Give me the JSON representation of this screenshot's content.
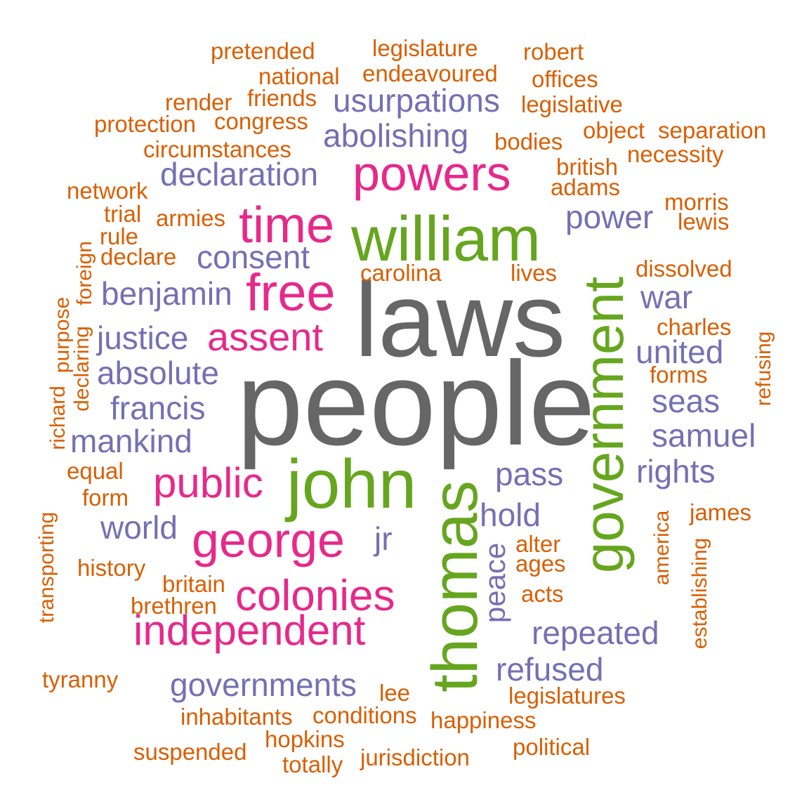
{
  "palette": {
    "gray": "#666666",
    "green": "#66A61E",
    "pink": "#E7298A",
    "purple": "#7570B3",
    "orange": "#D95F02"
  },
  "words": [
    {
      "text": "laws",
      "color": "gray"
    },
    {
      "text": "people",
      "color": "gray"
    },
    {
      "text": "william",
      "color": "green"
    },
    {
      "text": "john",
      "color": "green"
    },
    {
      "text": "thomas",
      "color": "green"
    },
    {
      "text": "government",
      "color": "green"
    },
    {
      "text": "powers",
      "color": "pink"
    },
    {
      "text": "time",
      "color": "pink"
    },
    {
      "text": "free",
      "color": "pink"
    },
    {
      "text": "assent",
      "color": "pink"
    },
    {
      "text": "public",
      "color": "pink"
    },
    {
      "text": "george",
      "color": "pink"
    },
    {
      "text": "colonies",
      "color": "pink"
    },
    {
      "text": "independent",
      "color": "pink"
    },
    {
      "text": "usurpations",
      "color": "purple"
    },
    {
      "text": "abolishing",
      "color": "purple"
    },
    {
      "text": "declaration",
      "color": "purple"
    },
    {
      "text": "consent",
      "color": "purple"
    },
    {
      "text": "benjamin",
      "color": "purple"
    },
    {
      "text": "justice",
      "color": "purple"
    },
    {
      "text": "absolute",
      "color": "purple"
    },
    {
      "text": "francis",
      "color": "purple"
    },
    {
      "text": "mankind",
      "color": "purple"
    },
    {
      "text": "world",
      "color": "purple"
    },
    {
      "text": "jr",
      "color": "purple"
    },
    {
      "text": "governments",
      "color": "purple"
    },
    {
      "text": "power",
      "color": "purple"
    },
    {
      "text": "war",
      "color": "purple"
    },
    {
      "text": "united",
      "color": "purple"
    },
    {
      "text": "seas",
      "color": "purple"
    },
    {
      "text": "samuel",
      "color": "purple"
    },
    {
      "text": "rights",
      "color": "purple"
    },
    {
      "text": "pass",
      "color": "purple"
    },
    {
      "text": "hold",
      "color": "purple"
    },
    {
      "text": "peace",
      "color": "purple"
    },
    {
      "text": "repeated",
      "color": "purple"
    },
    {
      "text": "refused",
      "color": "purple"
    },
    {
      "text": "pretended",
      "color": "orange"
    },
    {
      "text": "legislature",
      "color": "orange"
    },
    {
      "text": "robert",
      "color": "orange"
    },
    {
      "text": "national",
      "color": "orange"
    },
    {
      "text": "endeavoured",
      "color": "orange"
    },
    {
      "text": "offices",
      "color": "orange"
    },
    {
      "text": "render",
      "color": "orange"
    },
    {
      "text": "friends",
      "color": "orange"
    },
    {
      "text": "legislative",
      "color": "orange"
    },
    {
      "text": "protection",
      "color": "orange"
    },
    {
      "text": "congress",
      "color": "orange"
    },
    {
      "text": "object",
      "color": "orange"
    },
    {
      "text": "separation",
      "color": "orange"
    },
    {
      "text": "circumstances",
      "color": "orange"
    },
    {
      "text": "bodies",
      "color": "orange"
    },
    {
      "text": "necessity",
      "color": "orange"
    },
    {
      "text": "british",
      "color": "orange"
    },
    {
      "text": "network",
      "color": "orange"
    },
    {
      "text": "adams",
      "color": "orange"
    },
    {
      "text": "trial",
      "color": "orange"
    },
    {
      "text": "armies",
      "color": "orange"
    },
    {
      "text": "morris",
      "color": "orange"
    },
    {
      "text": "lewis",
      "color": "orange"
    },
    {
      "text": "rule",
      "color": "orange"
    },
    {
      "text": "declare",
      "color": "orange"
    },
    {
      "text": "carolina",
      "color": "orange"
    },
    {
      "text": "lives",
      "color": "orange"
    },
    {
      "text": "dissolved",
      "color": "orange"
    },
    {
      "text": "charles",
      "color": "orange"
    },
    {
      "text": "forms",
      "color": "orange"
    },
    {
      "text": "equal",
      "color": "orange"
    },
    {
      "text": "form",
      "color": "orange"
    },
    {
      "text": "history",
      "color": "orange"
    },
    {
      "text": "britain",
      "color": "orange"
    },
    {
      "text": "brethren",
      "color": "orange"
    },
    {
      "text": "alter",
      "color": "orange"
    },
    {
      "text": "ages",
      "color": "orange"
    },
    {
      "text": "acts",
      "color": "orange"
    },
    {
      "text": "james",
      "color": "orange"
    },
    {
      "text": "tyranny",
      "color": "orange"
    },
    {
      "text": "lee",
      "color": "orange"
    },
    {
      "text": "legislatures",
      "color": "orange"
    },
    {
      "text": "inhabitants",
      "color": "orange"
    },
    {
      "text": "conditions",
      "color": "orange"
    },
    {
      "text": "happiness",
      "color": "orange"
    },
    {
      "text": "hopkins",
      "color": "orange"
    },
    {
      "text": "suspended",
      "color": "orange"
    },
    {
      "text": "political",
      "color": "orange"
    },
    {
      "text": "totally",
      "color": "orange"
    },
    {
      "text": "jurisdiction",
      "color": "orange"
    },
    {
      "text": "foreign",
      "color": "orange"
    },
    {
      "text": "purpose",
      "color": "orange"
    },
    {
      "text": "declaring",
      "color": "orange"
    },
    {
      "text": "richard",
      "color": "orange"
    },
    {
      "text": "transporting",
      "color": "orange"
    },
    {
      "text": "refusing",
      "color": "orange"
    },
    {
      "text": "america",
      "color": "orange"
    },
    {
      "text": "establishing",
      "color": "orange"
    }
  ]
}
